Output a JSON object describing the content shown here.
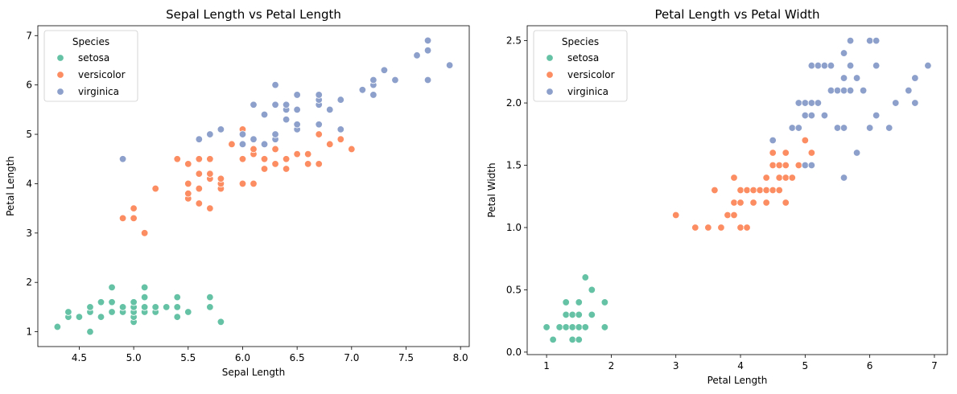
{
  "chart_data": [
    {
      "type": "scatter",
      "title": "Sepal Length vs Petal Length",
      "xlabel": "Sepal Length",
      "ylabel": "Petal Length",
      "xlim": [
        4.12,
        8.08
      ],
      "ylim": [
        0.7,
        7.2
      ],
      "xticks": [
        "4.5",
        "5.0",
        "5.5",
        "6.0",
        "6.5",
        "7.0",
        "7.5",
        "8.0"
      ],
      "yticks": [
        "1",
        "2",
        "3",
        "4",
        "5",
        "6",
        "7"
      ],
      "legend": {
        "title": "Species",
        "placement": "top-left"
      },
      "series": [
        {
          "name": "setosa",
          "color": "#66c2a5",
          "points": [
            [
              4.3,
              1.1
            ],
            [
              4.4,
              1.3
            ],
            [
              4.4,
              1.4
            ],
            [
              4.5,
              1.3
            ],
            [
              4.6,
              1.0
            ],
            [
              4.6,
              1.4
            ],
            [
              4.6,
              1.5
            ],
            [
              4.7,
              1.3
            ],
            [
              4.7,
              1.6
            ],
            [
              4.8,
              1.4
            ],
            [
              4.8,
              1.6
            ],
            [
              4.8,
              1.9
            ],
            [
              4.9,
              1.4
            ],
            [
              4.9,
              1.5
            ],
            [
              5.0,
              1.2
            ],
            [
              5.0,
              1.3
            ],
            [
              5.0,
              1.4
            ],
            [
              5.0,
              1.5
            ],
            [
              5.0,
              1.6
            ],
            [
              5.1,
              1.4
            ],
            [
              5.1,
              1.5
            ],
            [
              5.1,
              1.7
            ],
            [
              5.1,
              1.9
            ],
            [
              5.2,
              1.4
            ],
            [
              5.2,
              1.5
            ],
            [
              5.3,
              1.5
            ],
            [
              5.4,
              1.3
            ],
            [
              5.4,
              1.5
            ],
            [
              5.4,
              1.7
            ],
            [
              5.5,
              1.4
            ],
            [
              5.7,
              1.5
            ],
            [
              5.7,
              1.7
            ],
            [
              5.8,
              1.2
            ]
          ]
        },
        {
          "name": "versicolor",
          "color": "#fc8d62",
          "points": [
            [
              4.9,
              3.3
            ],
            [
              5.0,
              3.3
            ],
            [
              5.0,
              3.5
            ],
            [
              5.1,
              3.0
            ],
            [
              5.2,
              3.9
            ],
            [
              5.4,
              4.5
            ],
            [
              5.5,
              3.7
            ],
            [
              5.5,
              3.8
            ],
            [
              5.5,
              4.0
            ],
            [
              5.5,
              4.4
            ],
            [
              5.6,
              3.6
            ],
            [
              5.6,
              3.9
            ],
            [
              5.6,
              4.2
            ],
            [
              5.6,
              4.5
            ],
            [
              5.7,
              3.5
            ],
            [
              5.7,
              4.1
            ],
            [
              5.7,
              4.2
            ],
            [
              5.7,
              4.5
            ],
            [
              5.8,
              3.9
            ],
            [
              5.8,
              4.0
            ],
            [
              5.8,
              4.1
            ],
            [
              5.9,
              4.8
            ],
            [
              6.0,
              4.0
            ],
            [
              6.0,
              4.5
            ],
            [
              6.0,
              5.1
            ],
            [
              6.1,
              4.0
            ],
            [
              6.1,
              4.6
            ],
            [
              6.1,
              4.7
            ],
            [
              6.2,
              4.3
            ],
            [
              6.2,
              4.5
            ],
            [
              6.3,
              4.4
            ],
            [
              6.3,
              4.7
            ],
            [
              6.4,
              4.3
            ],
            [
              6.4,
              4.5
            ],
            [
              6.5,
              4.6
            ],
            [
              6.6,
              4.4
            ],
            [
              6.6,
              4.6
            ],
            [
              6.7,
              4.4
            ],
            [
              6.7,
              5.0
            ],
            [
              6.8,
              4.8
            ],
            [
              6.9,
              4.9
            ],
            [
              7.0,
              4.7
            ]
          ]
        },
        {
          "name": "virginica",
          "color": "#8da0cb",
          "points": [
            [
              4.9,
              4.5
            ],
            [
              5.6,
              4.9
            ],
            [
              5.7,
              5.0
            ],
            [
              5.8,
              5.1
            ],
            [
              6.0,
              4.8
            ],
            [
              6.0,
              5.0
            ],
            [
              6.1,
              4.9
            ],
            [
              6.1,
              5.6
            ],
            [
              6.2,
              4.8
            ],
            [
              6.2,
              5.4
            ],
            [
              6.3,
              4.9
            ],
            [
              6.3,
              5.0
            ],
            [
              6.3,
              5.6
            ],
            [
              6.3,
              6.0
            ],
            [
              6.4,
              5.3
            ],
            [
              6.4,
              5.5
            ],
            [
              6.4,
              5.6
            ],
            [
              6.5,
              5.1
            ],
            [
              6.5,
              5.2
            ],
            [
              6.5,
              5.5
            ],
            [
              6.5,
              5.8
            ],
            [
              6.7,
              5.2
            ],
            [
              6.7,
              5.6
            ],
            [
              6.7,
              5.7
            ],
            [
              6.7,
              5.8
            ],
            [
              6.8,
              5.5
            ],
            [
              6.9,
              5.1
            ],
            [
              6.9,
              5.7
            ],
            [
              7.1,
              5.9
            ],
            [
              7.2,
              5.8
            ],
            [
              7.2,
              6.0
            ],
            [
              7.2,
              6.1
            ],
            [
              7.3,
              6.3
            ],
            [
              7.4,
              6.1
            ],
            [
              7.6,
              6.6
            ],
            [
              7.7,
              6.1
            ],
            [
              7.7,
              6.7
            ],
            [
              7.7,
              6.9
            ],
            [
              7.9,
              6.4
            ]
          ]
        }
      ]
    },
    {
      "type": "scatter",
      "title": "Petal Length vs Petal Width",
      "xlabel": "Petal Length",
      "ylabel": "Petal Width",
      "xlim": [
        0.7,
        7.2
      ],
      "ylim": [
        -0.02,
        2.62
      ],
      "xticks": [
        "1",
        "2",
        "3",
        "4",
        "5",
        "6",
        "7"
      ],
      "yticks": [
        "0.0",
        "0.5",
        "1.0",
        "1.5",
        "2.0",
        "2.5"
      ],
      "legend": {
        "title": "Species",
        "placement": "top-left"
      },
      "series": [
        {
          "name": "setosa",
          "color": "#66c2a5",
          "points": [
            [
              1.0,
              0.2
            ],
            [
              1.1,
              0.1
            ],
            [
              1.2,
              0.2
            ],
            [
              1.3,
              0.2
            ],
            [
              1.3,
              0.3
            ],
            [
              1.3,
              0.4
            ],
            [
              1.4,
              0.1
            ],
            [
              1.4,
              0.2
            ],
            [
              1.4,
              0.3
            ],
            [
              1.5,
              0.1
            ],
            [
              1.5,
              0.2
            ],
            [
              1.5,
              0.3
            ],
            [
              1.5,
              0.4
            ],
            [
              1.6,
              0.2
            ],
            [
              1.6,
              0.6
            ],
            [
              1.7,
              0.3
            ],
            [
              1.7,
              0.5
            ],
            [
              1.9,
              0.2
            ],
            [
              1.9,
              0.4
            ]
          ]
        },
        {
          "name": "versicolor",
          "color": "#fc8d62",
          "points": [
            [
              3.0,
              1.1
            ],
            [
              3.3,
              1.0
            ],
            [
              3.5,
              1.0
            ],
            [
              3.6,
              1.3
            ],
            [
              3.7,
              1.0
            ],
            [
              3.8,
              1.1
            ],
            [
              3.9,
              1.1
            ],
            [
              3.9,
              1.2
            ],
            [
              3.9,
              1.4
            ],
            [
              4.0,
              1.0
            ],
            [
              4.0,
              1.2
            ],
            [
              4.0,
              1.3
            ],
            [
              4.1,
              1.0
            ],
            [
              4.1,
              1.3
            ],
            [
              4.2,
              1.2
            ],
            [
              4.2,
              1.3
            ],
            [
              4.3,
              1.3
            ],
            [
              4.4,
              1.2
            ],
            [
              4.4,
              1.3
            ],
            [
              4.4,
              1.4
            ],
            [
              4.5,
              1.3
            ],
            [
              4.5,
              1.5
            ],
            [
              4.5,
              1.6
            ],
            [
              4.6,
              1.3
            ],
            [
              4.6,
              1.4
            ],
            [
              4.6,
              1.5
            ],
            [
              4.7,
              1.2
            ],
            [
              4.7,
              1.4
            ],
            [
              4.7,
              1.5
            ],
            [
              4.7,
              1.6
            ],
            [
              4.8,
              1.4
            ],
            [
              4.8,
              1.8
            ],
            [
              4.9,
              1.5
            ],
            [
              5.0,
              1.7
            ],
            [
              5.1,
              1.6
            ]
          ]
        },
        {
          "name": "virginica",
          "color": "#8da0cb",
          "points": [
            [
              4.5,
              1.7
            ],
            [
              4.8,
              1.8
            ],
            [
              4.9,
              1.8
            ],
            [
              4.9,
              2.0
            ],
            [
              5.0,
              1.5
            ],
            [
              5.0,
              1.9
            ],
            [
              5.0,
              2.0
            ],
            [
              5.1,
              1.5
            ],
            [
              5.1,
              1.9
            ],
            [
              5.1,
              2.0
            ],
            [
              5.1,
              2.3
            ],
            [
              5.2,
              2.0
            ],
            [
              5.2,
              2.3
            ],
            [
              5.3,
              1.9
            ],
            [
              5.3,
              2.3
            ],
            [
              5.4,
              2.1
            ],
            [
              5.4,
              2.3
            ],
            [
              5.5,
              1.8
            ],
            [
              5.5,
              2.1
            ],
            [
              5.6,
              1.4
            ],
            [
              5.6,
              1.8
            ],
            [
              5.6,
              2.1
            ],
            [
              5.6,
              2.2
            ],
            [
              5.6,
              2.4
            ],
            [
              5.7,
              2.1
            ],
            [
              5.7,
              2.3
            ],
            [
              5.7,
              2.5
            ],
            [
              5.8,
              1.6
            ],
            [
              5.8,
              2.2
            ],
            [
              5.9,
              2.1
            ],
            [
              6.0,
              1.8
            ],
            [
              6.0,
              2.5
            ],
            [
              6.1,
              1.9
            ],
            [
              6.1,
              2.3
            ],
            [
              6.1,
              2.5
            ],
            [
              6.3,
              1.8
            ],
            [
              6.4,
              2.0
            ],
            [
              6.6,
              2.1
            ],
            [
              6.7,
              2.0
            ],
            [
              6.7,
              2.2
            ],
            [
              6.9,
              2.3
            ]
          ]
        }
      ]
    }
  ]
}
